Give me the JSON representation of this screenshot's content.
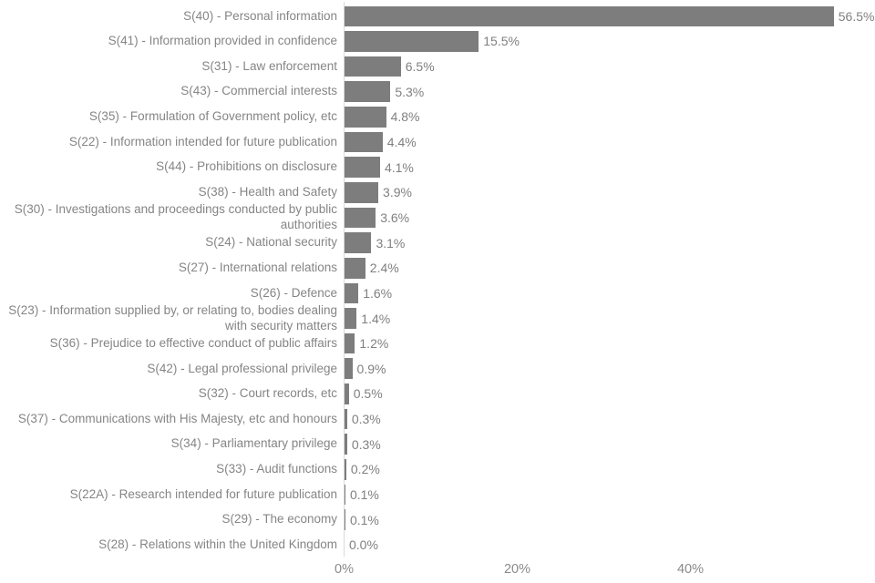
{
  "chart_data": {
    "type": "bar",
    "orientation": "horizontal",
    "title": "",
    "xlabel": "",
    "ylabel": "",
    "xlim": [
      0,
      61
    ],
    "grid": false,
    "legend_position": "none",
    "x_ticks": [
      {
        "label": "0%",
        "value": 0
      },
      {
        "label": "20%",
        "value": 20
      },
      {
        "label": "40%",
        "value": 40
      }
    ],
    "bars": [
      {
        "category": "S(40) - Personal information",
        "value": 56.5,
        "label": "56.5%"
      },
      {
        "category": "S(41) - Information provided in confidence",
        "value": 15.5,
        "label": "15.5%"
      },
      {
        "category": "S(31) - Law enforcement",
        "value": 6.5,
        "label": "6.5%"
      },
      {
        "category": "S(43) - Commercial interests",
        "value": 5.3,
        "label": "5.3%"
      },
      {
        "category": "S(35) - Formulation of Government policy, etc",
        "value": 4.8,
        "label": "4.8%"
      },
      {
        "category": "S(22) - Information intended for future publication",
        "value": 4.4,
        "label": "4.4%"
      },
      {
        "category": "S(44) - Prohibitions on disclosure",
        "value": 4.1,
        "label": "4.1%"
      },
      {
        "category": "S(38) - Health and Safety",
        "value": 3.9,
        "label": "3.9%"
      },
      {
        "category": "S(30) - Investigations and proceedings conducted by public authorities",
        "value": 3.6,
        "label": "3.6%"
      },
      {
        "category": "S(24) - National security",
        "value": 3.1,
        "label": "3.1%"
      },
      {
        "category": "S(27) - International relations",
        "value": 2.4,
        "label": "2.4%"
      },
      {
        "category": "S(26) - Defence",
        "value": 1.6,
        "label": "1.6%"
      },
      {
        "category": "S(23) - Information supplied by, or relating to, bodies dealing with security matters",
        "value": 1.4,
        "label": "1.4%"
      },
      {
        "category": "S(36) - Prejudice to effective conduct of public affairs",
        "value": 1.2,
        "label": "1.2%"
      },
      {
        "category": "S(42) - Legal professional privilege",
        "value": 0.9,
        "label": "0.9%"
      },
      {
        "category": "S(32) - Court records, etc",
        "value": 0.5,
        "label": "0.5%"
      },
      {
        "category": "S(37) - Communications with His Majesty, etc and honours",
        "value": 0.3,
        "label": "0.3%"
      },
      {
        "category": "S(34) - Parliamentary privilege",
        "value": 0.3,
        "label": "0.3%"
      },
      {
        "category": "S(33) - Audit functions",
        "value": 0.2,
        "label": "0.2%"
      },
      {
        "category": "S(22A) - Research intended for future publication",
        "value": 0.1,
        "label": "0.1%"
      },
      {
        "category": "S(29) - The economy",
        "value": 0.1,
        "label": "0.1%"
      },
      {
        "category": "S(28) - Relations within the United Kingdom",
        "value": 0.0,
        "label": "0.0%"
      }
    ],
    "colors": {
      "bar": "#7d7d7d",
      "label_text": "#858585",
      "value_text": "#808080",
      "tick_text": "#8a8a8a",
      "axis_line": "#d9d9d9",
      "background": "#ffffff"
    }
  }
}
